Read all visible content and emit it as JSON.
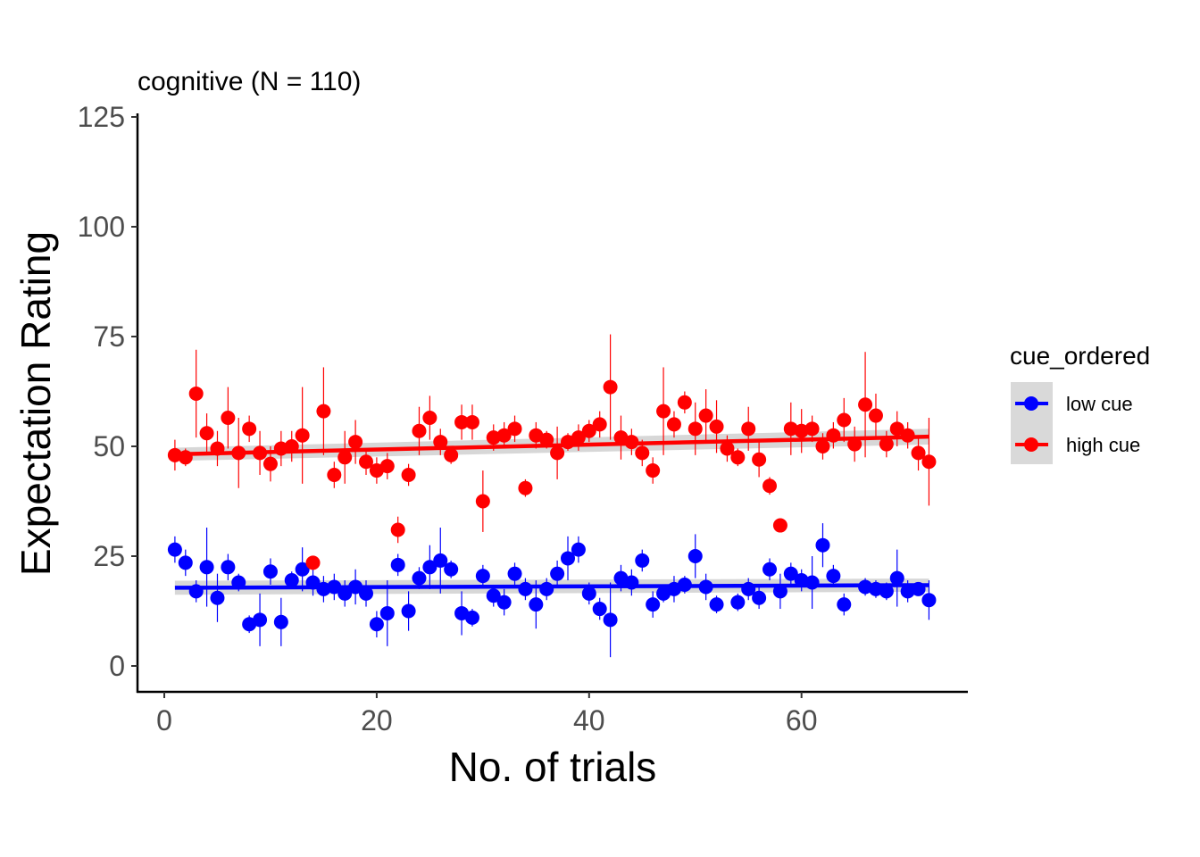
{
  "chart_data": {
    "type": "scatter",
    "title": "cognitive (N = 110)",
    "xlabel": "No. of trials",
    "ylabel": "Expectation Rating",
    "xlim": [
      -4,
      75
    ],
    "ylim": [
      -6,
      125
    ],
    "xticks": [
      0,
      20,
      40,
      60
    ],
    "yticks": [
      0,
      25,
      50,
      75,
      100,
      125
    ],
    "grid": false,
    "legend": {
      "title": "cue_ordered",
      "position": "right",
      "entries": [
        "low cue",
        "high cue"
      ]
    },
    "series": [
      {
        "name": "low cue",
        "color": "#0000ff",
        "x": [
          1,
          2,
          3,
          4,
          5,
          6,
          7,
          8,
          9,
          10,
          11,
          12,
          13,
          14,
          15,
          16,
          17,
          18,
          19,
          20,
          21,
          22,
          23,
          24,
          25,
          26,
          27,
          28,
          29,
          30,
          31,
          32,
          33,
          34,
          35,
          36,
          37,
          38,
          39,
          40,
          41,
          42,
          43,
          44,
          45,
          46,
          47,
          48,
          49,
          50,
          51,
          52,
          53,
          54,
          55,
          56,
          57,
          58,
          59,
          60,
          61,
          62,
          63,
          64,
          65,
          66,
          67,
          68,
          69,
          70,
          71,
          72
        ],
        "y": [
          26.5,
          23.5,
          17,
          22.5,
          15.5,
          22.5,
          19,
          9.5,
          10.5,
          21.5,
          10,
          19.5,
          22,
          19,
          17.5,
          18,
          16.5,
          18,
          16.5,
          9.5,
          12,
          23,
          12.5,
          20,
          22.5,
          24,
          22,
          12,
          11,
          20.5,
          16,
          14.5,
          21,
          17.5,
          14,
          17.5,
          21,
          24.5,
          26.5,
          16.5,
          13,
          10.5,
          20,
          19,
          24,
          14,
          16.5,
          17.5,
          18.5,
          25,
          18,
          14,
          null,
          14.5,
          17.5,
          15.5,
          22,
          17,
          21,
          19.5,
          19,
          27.5,
          20.5,
          14,
          null,
          18,
          17.5,
          17,
          20,
          17,
          17.5,
          15
        ],
        "err": [
          3,
          3,
          2.5,
          9,
          5.5,
          3,
          2,
          2,
          6,
          3,
          5.5,
          2,
          5,
          3,
          3,
          3,
          3,
          4,
          3,
          3,
          7.5,
          2.5,
          4.5,
          2.5,
          5,
          7.5,
          2,
          5,
          2,
          2.5,
          2.5,
          3,
          2.5,
          2.5,
          5.5,
          2.5,
          3,
          5,
          3,
          2.5,
          2.5,
          8.5,
          3,
          3,
          2.5,
          3,
          2,
          3,
          2,
          5,
          3,
          2,
          null,
          2,
          2.5,
          2.5,
          2.5,
          4,
          2.5,
          2.5,
          6,
          5,
          2.5,
          2.5,
          null,
          2,
          2,
          2,
          6.5,
          2.5,
          1.5,
          4.5
        ],
        "trend": [
          17.8,
          18.4
        ],
        "band": [
          1.6,
          1.5
        ]
      },
      {
        "name": "high cue",
        "color": "#ff0000",
        "x": [
          1,
          2,
          3,
          4,
          5,
          6,
          7,
          8,
          9,
          10,
          11,
          12,
          13,
          14,
          15,
          16,
          17,
          18,
          19,
          20,
          21,
          22,
          23,
          24,
          25,
          26,
          27,
          28,
          29,
          30,
          31,
          32,
          33,
          34,
          35,
          36,
          37,
          38,
          39,
          40,
          41,
          42,
          43,
          44,
          45,
          46,
          47,
          48,
          49,
          50,
          51,
          52,
          53,
          54,
          55,
          56,
          57,
          58,
          59,
          60,
          61,
          62,
          63,
          64,
          65,
          66,
          67,
          68,
          69,
          70,
          71,
          72
        ],
        "y": [
          48,
          47.5,
          62,
          53,
          49.5,
          56.5,
          48.5,
          54,
          48.5,
          46,
          49.5,
          50,
          52.5,
          23.5,
          58,
          43.5,
          47.5,
          51,
          46.5,
          44.5,
          45.5,
          31,
          43.5,
          53.5,
          56.5,
          51,
          48,
          55.5,
          55.5,
          37.5,
          52,
          52.5,
          54,
          40.5,
          52.5,
          51.5,
          48.5,
          51,
          52,
          53.5,
          55,
          63.5,
          52,
          51,
          48.5,
          44.5,
          58,
          55,
          60,
          54,
          57,
          54.5,
          49.5,
          47.5,
          54,
          47,
          41,
          32,
          54,
          53.5,
          54,
          50,
          52.5,
          56,
          50.5,
          59.5,
          57,
          50.5,
          54,
          52.5,
          48.5,
          46.5
        ],
        "err": [
          3.5,
          2,
          10,
          4.5,
          4,
          7,
          8,
          3,
          5,
          4,
          4,
          3.5,
          11,
          1,
          10,
          3,
          6,
          5,
          3,
          3,
          3,
          3,
          2.5,
          5.5,
          5,
          3,
          2,
          4,
          4,
          7,
          3,
          3,
          3,
          2,
          3,
          2,
          6,
          2,
          3,
          2.5,
          3,
          12,
          5,
          3,
          3,
          3,
          10,
          3,
          2.5,
          6,
          6,
          6,
          3,
          2,
          5,
          4,
          2,
          1.5,
          6,
          5,
          3,
          3,
          3,
          5,
          4,
          12,
          5,
          3,
          4,
          3,
          4,
          10
        ],
        "trend": [
          48.2,
          52.2
        ],
        "band": [
          1.5,
          1.8
        ]
      }
    ]
  }
}
